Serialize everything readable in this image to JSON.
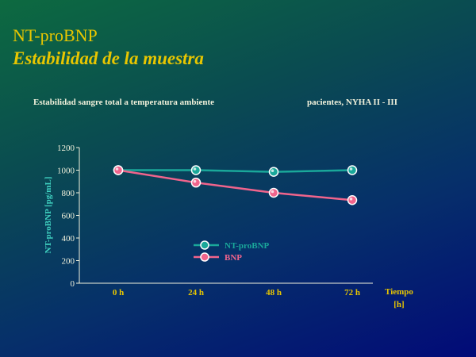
{
  "slide": {
    "title": "NT-proBNP",
    "subtitle": "Estabilidad de la muestra",
    "note_left": "Estabilidad sangre total a temperatura ambiente",
    "note_right": "pacientes, NYHA II - III"
  },
  "colors": {
    "title": "#e8c600",
    "axis": "#f2f2dc",
    "ylabel": "#3fd0c0",
    "xlabel": "#e8c600",
    "ntprobnp": "#1aa89a",
    "bnp": "#f0648c"
  },
  "chart_data": {
    "type": "line",
    "categories": [
      "0 h",
      "24 h",
      "48 h",
      "72 h"
    ],
    "ylabel": "NT-proBNP [pg/mL]",
    "xlabel": [
      "Tiempo",
      "[h]"
    ],
    "ylim": [
      0,
      1200
    ],
    "yticks": [
      0,
      200,
      400,
      600,
      800,
      1000,
      1200
    ],
    "ytick_labels": [
      "0",
      "200",
      "400",
      "600",
      "800",
      "1000",
      "1200"
    ],
    "grid": false,
    "legend": "center",
    "series": [
      {
        "name": "NT-proBNP",
        "values": [
          1000,
          1000,
          985,
          1000
        ],
        "color": "#1aa89a"
      },
      {
        "name": "BNP",
        "values": [
          1000,
          890,
          800,
          735
        ],
        "color": "#f0648c"
      }
    ]
  }
}
